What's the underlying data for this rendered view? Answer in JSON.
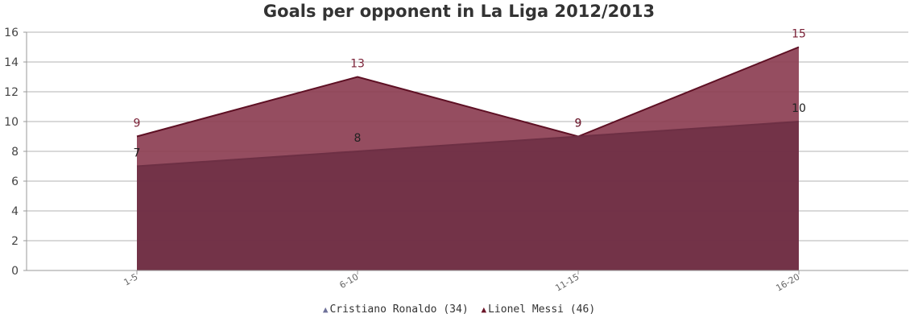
{
  "chart_data": {
    "type": "area",
    "title": "Goals per opponent in La Liga 2012/2013",
    "categories": [
      "1-5",
      "6-10",
      "11-15",
      "16-20"
    ],
    "ylim": [
      0,
      16
    ],
    "yticks": [
      "0",
      "2",
      "4",
      "6",
      "8",
      "10",
      "12",
      "14",
      "16"
    ],
    "grid": true,
    "legend_position": "bottom",
    "series": [
      {
        "name": "Cristiano Ronaldo (34)",
        "values": [
          7,
          8,
          9,
          10
        ],
        "color": "#6e7199",
        "fill": "#6d2f44",
        "line": "#6d2f44",
        "label_color": "#222222"
      },
      {
        "name": "Lionel Messi (46)",
        "values": [
          9,
          13,
          9,
          15
        ],
        "color": "#6b1428",
        "fill": "#8a3a4f",
        "line": "#5e1024",
        "label_color": "#7a2036"
      }
    ]
  }
}
